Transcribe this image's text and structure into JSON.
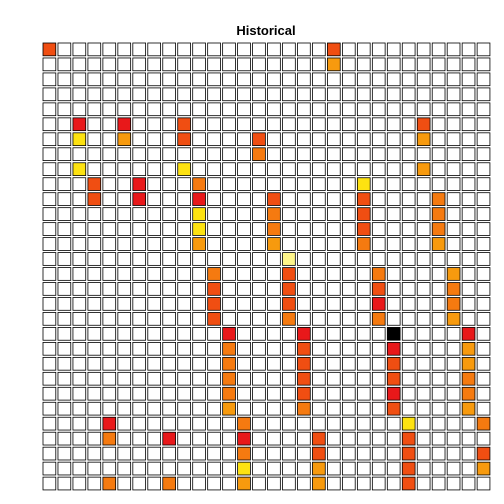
{
  "chart_data": {
    "type": "heatmap",
    "title": "Historical",
    "rows": 30,
    "cols": 30,
    "grid": true,
    "empty_color": "#FFFFFF",
    "border_color": "#000000",
    "palette": {
      "r": "#E8181A",
      "o": "#F04E12",
      "d": "#F57A10",
      "a": "#F79A0E",
      "y": "#FDE211",
      "p": "#FFF68A",
      "k": "#000000"
    },
    "cells": [
      {
        "row": 1,
        "col": 1,
        "level": "o"
      },
      {
        "row": 1,
        "col": 20,
        "level": "o"
      },
      {
        "row": 2,
        "col": 20,
        "level": "a"
      },
      {
        "row": 6,
        "col": 3,
        "level": "r"
      },
      {
        "row": 6,
        "col": 6,
        "level": "r"
      },
      {
        "row": 6,
        "col": 10,
        "level": "o"
      },
      {
        "row": 6,
        "col": 26,
        "level": "o"
      },
      {
        "row": 7,
        "col": 3,
        "level": "y"
      },
      {
        "row": 7,
        "col": 6,
        "level": "a"
      },
      {
        "row": 7,
        "col": 10,
        "level": "o"
      },
      {
        "row": 7,
        "col": 15,
        "level": "o"
      },
      {
        "row": 7,
        "col": 26,
        "level": "a"
      },
      {
        "row": 8,
        "col": 15,
        "level": "d"
      },
      {
        "row": 9,
        "col": 3,
        "level": "y"
      },
      {
        "row": 9,
        "col": 10,
        "level": "y"
      },
      {
        "row": 9,
        "col": 26,
        "level": "a"
      },
      {
        "row": 10,
        "col": 4,
        "level": "o"
      },
      {
        "row": 10,
        "col": 7,
        "level": "r"
      },
      {
        "row": 10,
        "col": 11,
        "level": "d"
      },
      {
        "row": 10,
        "col": 22,
        "level": "y"
      },
      {
        "row": 11,
        "col": 4,
        "level": "o"
      },
      {
        "row": 11,
        "col": 7,
        "level": "r"
      },
      {
        "row": 11,
        "col": 11,
        "level": "r"
      },
      {
        "row": 11,
        "col": 16,
        "level": "o"
      },
      {
        "row": 11,
        "col": 22,
        "level": "o"
      },
      {
        "row": 11,
        "col": 27,
        "level": "d"
      },
      {
        "row": 12,
        "col": 11,
        "level": "y"
      },
      {
        "row": 12,
        "col": 16,
        "level": "d"
      },
      {
        "row": 12,
        "col": 22,
        "level": "o"
      },
      {
        "row": 12,
        "col": 27,
        "level": "d"
      },
      {
        "row": 13,
        "col": 11,
        "level": "y"
      },
      {
        "row": 13,
        "col": 16,
        "level": "d"
      },
      {
        "row": 13,
        "col": 22,
        "level": "o"
      },
      {
        "row": 13,
        "col": 27,
        "level": "d"
      },
      {
        "row": 14,
        "col": 11,
        "level": "a"
      },
      {
        "row": 14,
        "col": 16,
        "level": "a"
      },
      {
        "row": 14,
        "col": 22,
        "level": "d"
      },
      {
        "row": 14,
        "col": 27,
        "level": "a"
      },
      {
        "row": 15,
        "col": 17,
        "level": "p"
      },
      {
        "row": 16,
        "col": 12,
        "level": "d"
      },
      {
        "row": 16,
        "col": 17,
        "level": "o"
      },
      {
        "row": 16,
        "col": 23,
        "level": "d"
      },
      {
        "row": 16,
        "col": 28,
        "level": "a"
      },
      {
        "row": 17,
        "col": 12,
        "level": "o"
      },
      {
        "row": 17,
        "col": 17,
        "level": "o"
      },
      {
        "row": 17,
        "col": 23,
        "level": "o"
      },
      {
        "row": 17,
        "col": 28,
        "level": "d"
      },
      {
        "row": 18,
        "col": 12,
        "level": "o"
      },
      {
        "row": 18,
        "col": 17,
        "level": "o"
      },
      {
        "row": 18,
        "col": 23,
        "level": "r"
      },
      {
        "row": 18,
        "col": 28,
        "level": "d"
      },
      {
        "row": 19,
        "col": 12,
        "level": "o"
      },
      {
        "row": 19,
        "col": 17,
        "level": "d"
      },
      {
        "row": 19,
        "col": 23,
        "level": "d"
      },
      {
        "row": 19,
        "col": 28,
        "level": "a"
      },
      {
        "row": 20,
        "col": 13,
        "level": "r"
      },
      {
        "row": 20,
        "col": 18,
        "level": "r"
      },
      {
        "row": 20,
        "col": 24,
        "level": "k"
      },
      {
        "row": 20,
        "col": 29,
        "level": "r"
      },
      {
        "row": 21,
        "col": 13,
        "level": "d"
      },
      {
        "row": 21,
        "col": 18,
        "level": "o"
      },
      {
        "row": 21,
        "col": 24,
        "level": "r"
      },
      {
        "row": 21,
        "col": 29,
        "level": "a"
      },
      {
        "row": 22,
        "col": 13,
        "level": "d"
      },
      {
        "row": 22,
        "col": 18,
        "level": "o"
      },
      {
        "row": 22,
        "col": 24,
        "level": "o"
      },
      {
        "row": 22,
        "col": 29,
        "level": "a"
      },
      {
        "row": 23,
        "col": 13,
        "level": "d"
      },
      {
        "row": 23,
        "col": 18,
        "level": "o"
      },
      {
        "row": 23,
        "col": 24,
        "level": "o"
      },
      {
        "row": 23,
        "col": 29,
        "level": "d"
      },
      {
        "row": 24,
        "col": 13,
        "level": "d"
      },
      {
        "row": 24,
        "col": 18,
        "level": "o"
      },
      {
        "row": 24,
        "col": 24,
        "level": "r"
      },
      {
        "row": 24,
        "col": 29,
        "level": "d"
      },
      {
        "row": 25,
        "col": 13,
        "level": "a"
      },
      {
        "row": 25,
        "col": 18,
        "level": "d"
      },
      {
        "row": 25,
        "col": 24,
        "level": "o"
      },
      {
        "row": 25,
        "col": 29,
        "level": "a"
      },
      {
        "row": 26,
        "col": 5,
        "level": "r"
      },
      {
        "row": 26,
        "col": 14,
        "level": "d"
      },
      {
        "row": 26,
        "col": 25,
        "level": "y"
      },
      {
        "row": 26,
        "col": 30,
        "level": "d"
      },
      {
        "row": 27,
        "col": 5,
        "level": "d"
      },
      {
        "row": 27,
        "col": 9,
        "level": "r"
      },
      {
        "row": 27,
        "col": 14,
        "level": "r"
      },
      {
        "row": 27,
        "col": 19,
        "level": "o"
      },
      {
        "row": 27,
        "col": 25,
        "level": "o"
      },
      {
        "row": 28,
        "col": 14,
        "level": "d"
      },
      {
        "row": 28,
        "col": 19,
        "level": "o"
      },
      {
        "row": 28,
        "col": 25,
        "level": "o"
      },
      {
        "row": 28,
        "col": 30,
        "level": "o"
      },
      {
        "row": 29,
        "col": 14,
        "level": "y"
      },
      {
        "row": 29,
        "col": 19,
        "level": "a"
      },
      {
        "row": 29,
        "col": 25,
        "level": "o"
      },
      {
        "row": 29,
        "col": 30,
        "level": "a"
      },
      {
        "row": 30,
        "col": 5,
        "level": "d"
      },
      {
        "row": 30,
        "col": 9,
        "level": "d"
      },
      {
        "row": 30,
        "col": 14,
        "level": "a"
      },
      {
        "row": 30,
        "col": 19,
        "level": "a"
      },
      {
        "row": 30,
        "col": 25,
        "level": "o"
      }
    ]
  }
}
